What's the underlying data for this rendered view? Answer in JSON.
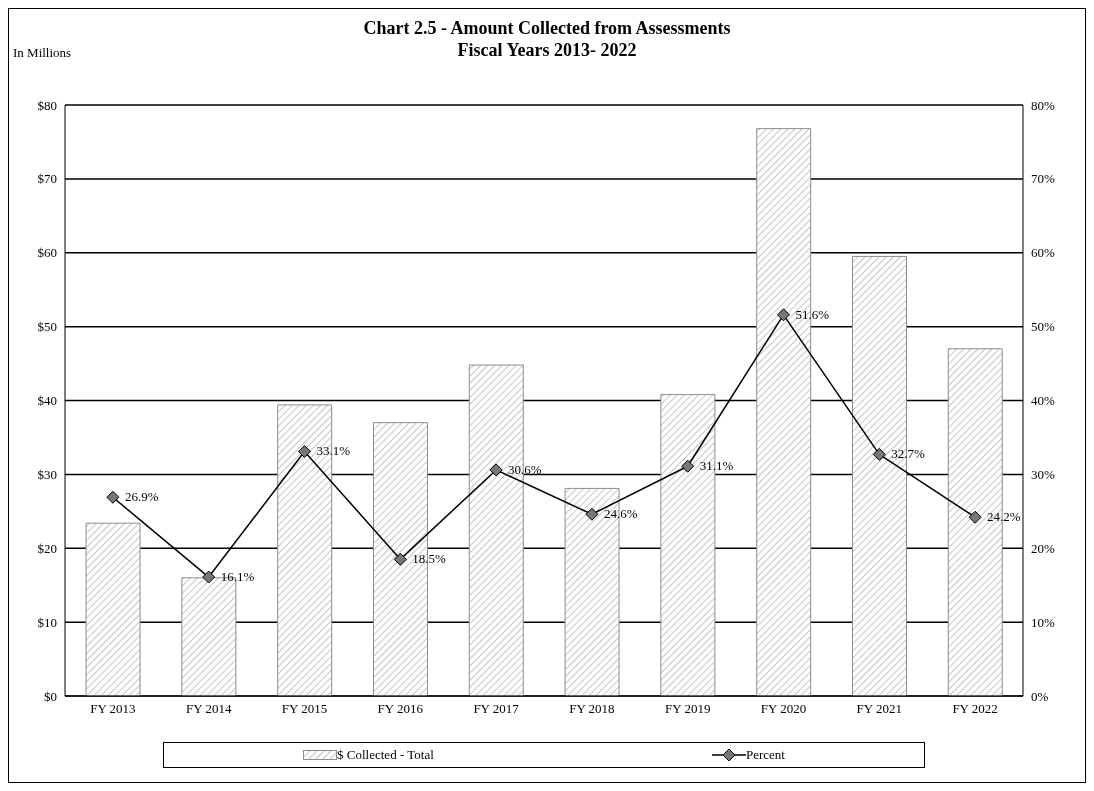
{
  "chart_data": {
    "type": "bar",
    "title": "Chart 2.5 - Amount Collected from Assessments",
    "subtitle": "Fiscal Years 2013- 2022",
    "ylabel": "In Millions",
    "categories": [
      "FY 2013",
      "FY 2014",
      "FY 2015",
      "FY 2016",
      "FY 2017",
      "FY 2018",
      "FY 2019",
      "FY 2020",
      "FY 2021",
      "FY 2022"
    ],
    "series": [
      {
        "name": "$ Collected - Total",
        "color": "#8c8c8c",
        "values": [
          23.4,
          16,
          39.4,
          37,
          44.8,
          28.1,
          40.8,
          76.8,
          59.5,
          47
        ]
      },
      {
        "name": "Percent",
        "type": "line",
        "axis": "y2",
        "color": "#000000",
        "marker": "diamond",
        "values": [
          26.9,
          16.1,
          33.1,
          18.5,
          30.6,
          24.6,
          31.1,
          51.6,
          32.7,
          24.2
        ],
        "value_labels": [
          "26.9%",
          "16.1%",
          "33.1%",
          "18.5%",
          "30.6%",
          "24.6%",
          "31.1%",
          "51.6%",
          "32.7%",
          "24.2%"
        ]
      }
    ],
    "ylim": [
      0,
      80
    ],
    "yticks": [
      {
        "value": 0,
        "label": "$0"
      },
      {
        "value": 10,
        "label": "$10"
      },
      {
        "value": 20,
        "label": "$20"
      },
      {
        "value": 30,
        "label": "$30"
      },
      {
        "value": 40,
        "label": "$40"
      },
      {
        "value": 50,
        "label": "$50"
      },
      {
        "value": 60,
        "label": "$60"
      },
      {
        "value": 70,
        "label": "$70"
      },
      {
        "value": 80,
        "label": "$80"
      }
    ],
    "y2lim": [
      0,
      80
    ],
    "y2ticks": [
      {
        "value": 0,
        "label": "0%"
      },
      {
        "value": 10,
        "label": "10%"
      },
      {
        "value": 20,
        "label": "20%"
      },
      {
        "value": 30,
        "label": "30%"
      },
      {
        "value": 40,
        "label": "40%"
      },
      {
        "value": 50,
        "label": "50%"
      },
      {
        "value": 60,
        "label": "60%"
      },
      {
        "value": 70,
        "label": "70%"
      },
      {
        "value": 80,
        "label": "80%"
      }
    ],
    "grid": "y",
    "legend": "bottom"
  }
}
